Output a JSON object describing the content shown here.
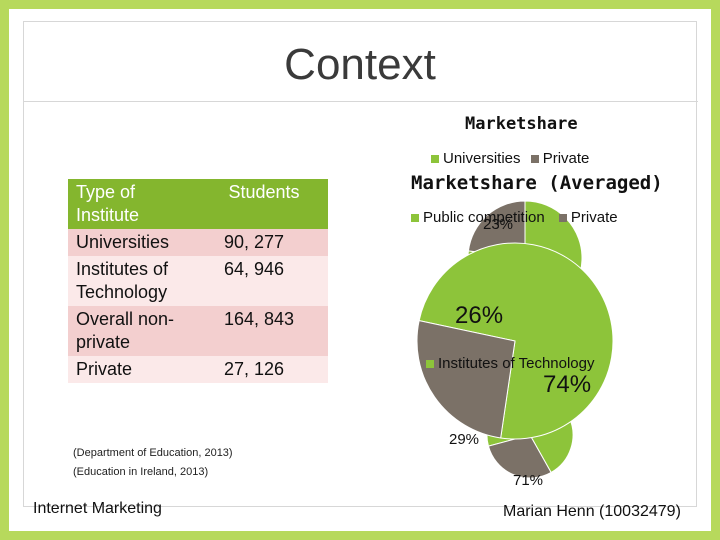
{
  "slide": {
    "title": "Context",
    "footer_left": "Internet Marketing",
    "footer_right": "Marian Henn (10032479)"
  },
  "table": {
    "headers": [
      "Type of Institute",
      "Students"
    ],
    "rows": [
      {
        "type": "Universities",
        "students": "90, 277"
      },
      {
        "type": "Institutes of Technology",
        "students": "64, 946"
      },
      {
        "type": "Overall non-private",
        "students": "164, 843"
      },
      {
        "type": "Private",
        "students": "27, 126"
      }
    ]
  },
  "citations": [
    "(Department of Education, 2013)",
    "(Education in Ireland, 2013)"
  ],
  "colors": {
    "green": "#8dc43a",
    "gray": "#7b7167",
    "accent": "#b7d95c"
  },
  "chart_data": [
    {
      "type": "pie",
      "title": "Marketshare",
      "legend_placement": "top",
      "categories": [
        "Universities",
        "Private"
      ],
      "values": [
        77,
        23
      ],
      "labels": [
        "",
        "23%"
      ],
      "colors": [
        "#8dc43a",
        "#7b7167"
      ]
    },
    {
      "type": "pie",
      "title": "Marketshare (Averaged)",
      "legend_placement": "top",
      "categories": [
        "Public competition",
        "Private"
      ],
      "values": [
        74,
        26
      ],
      "labels": [
        "74%",
        "26%"
      ],
      "colors": [
        "#8dc43a",
        "#7b7167"
      ]
    },
    {
      "type": "pie",
      "title": "",
      "categories": [
        "Institutes of Technology",
        "Private"
      ],
      "values": [
        71,
        29
      ],
      "labels": [
        "71%",
        "29%"
      ],
      "colors": [
        "#8dc43a",
        "#7b7167"
      ]
    }
  ]
}
